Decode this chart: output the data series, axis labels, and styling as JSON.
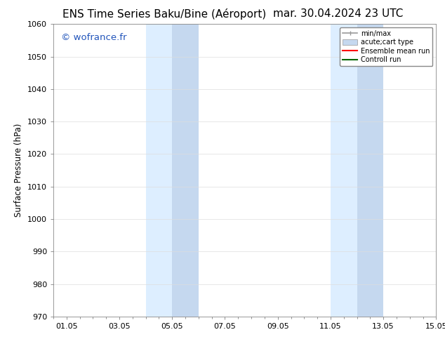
{
  "title_left": "ENS Time Series Baku/Bine (Aéroport)",
  "title_right": "mar. 30.04.2024 23 UTC",
  "ylabel": "Surface Pressure (hPa)",
  "ylim": [
    970,
    1060
  ],
  "yticks": [
    970,
    980,
    990,
    1000,
    1010,
    1020,
    1030,
    1040,
    1050,
    1060
  ],
  "xlim_start": 0.0,
  "xlim_end": 14.5,
  "xtick_labels": [
    "01.05",
    "03.05",
    "05.05",
    "07.05",
    "09.05",
    "11.05",
    "13.05",
    "15.05"
  ],
  "xtick_positions": [
    0.5,
    2.5,
    4.5,
    6.5,
    8.5,
    10.5,
    12.5,
    14.5
  ],
  "band1_light_start": 3.5,
  "band1_light_end": 5.5,
  "band1_dark_start": 4.5,
  "band1_dark_end": 5.5,
  "band2_light_start": 10.5,
  "band2_light_end": 12.5,
  "band2_dark_start": 11.5,
  "band2_dark_end": 12.5,
  "shade_light": "#ddeeff",
  "shade_dark": "#c5d8ef",
  "watermark": "© wofrance.fr",
  "watermark_color": "#2255bb",
  "legend_labels": [
    "min/max",
    "acute;cart type",
    "Ensemble mean run",
    "Controll run"
  ],
  "legend_colors": [
    "#aaaaaa",
    "#c5d8ef",
    "#ff0000",
    "#006600"
  ],
  "bg_color": "#ffffff",
  "grid_color": "#dddddd",
  "title_fontsize": 11,
  "axis_fontsize": 8.5,
  "watermark_fontsize": 9.5,
  "tick_fontsize": 8
}
